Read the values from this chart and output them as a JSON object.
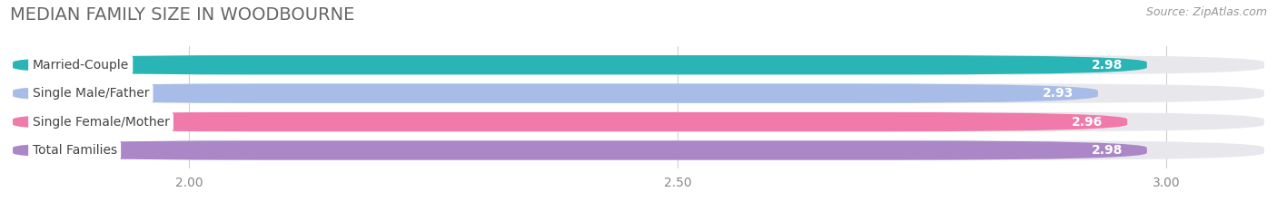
{
  "title": "MEDIAN FAMILY SIZE IN WOODBOURNE",
  "source": "Source: ZipAtlas.com",
  "categories": [
    "Married-Couple",
    "Single Male/Father",
    "Single Female/Mother",
    "Total Families"
  ],
  "values": [
    2.98,
    2.93,
    2.96,
    2.98
  ],
  "bar_colors": [
    "#29b4b6",
    "#a8bce8",
    "#f07aaa",
    "#ab87c8"
  ],
  "xlim_left": 1.82,
  "xlim_right": 3.1,
  "data_min": 1.82,
  "data_max": 3.1,
  "xticks": [
    2.0,
    2.5,
    3.0
  ],
  "xtick_labels": [
    "2.00",
    "2.50",
    "3.00"
  ],
  "background_color": "#ffffff",
  "pill_bg_color": "#e8e8ec",
  "title_fontsize": 14,
  "label_fontsize": 10,
  "value_fontsize": 10,
  "source_fontsize": 9
}
